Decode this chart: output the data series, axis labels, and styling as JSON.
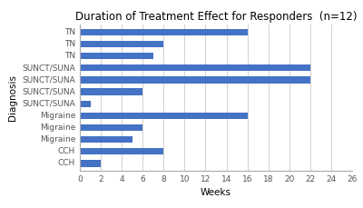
{
  "title": "Duration of Treatment Effect for Responders  (n=12)",
  "xlabel": "Weeks",
  "ylabel": "Diagnosis",
  "bar_color": "#4472C4",
  "categories": [
    "TN",
    "TN",
    "TN",
    "SUNCT/SUNA",
    "SUNCT/SUNA",
    "SUNCT/SUNA",
    "SUNCT/SUNA",
    "Migraine",
    "Migraine",
    "Migraine",
    "CCH",
    "CCH"
  ],
  "values": [
    16,
    8,
    7,
    22,
    22,
    6,
    1,
    16,
    6,
    5,
    8,
    2
  ],
  "xlim": [
    0,
    26
  ],
  "xticks": [
    0,
    2,
    4,
    6,
    8,
    10,
    12,
    14,
    16,
    18,
    20,
    22,
    24,
    26
  ],
  "background_color": "#ffffff",
  "grid_color": "#d0d0d0",
  "title_fontsize": 8.5,
  "axis_label_fontsize": 7.5,
  "tick_fontsize": 6.5,
  "bar_height": 0.55
}
